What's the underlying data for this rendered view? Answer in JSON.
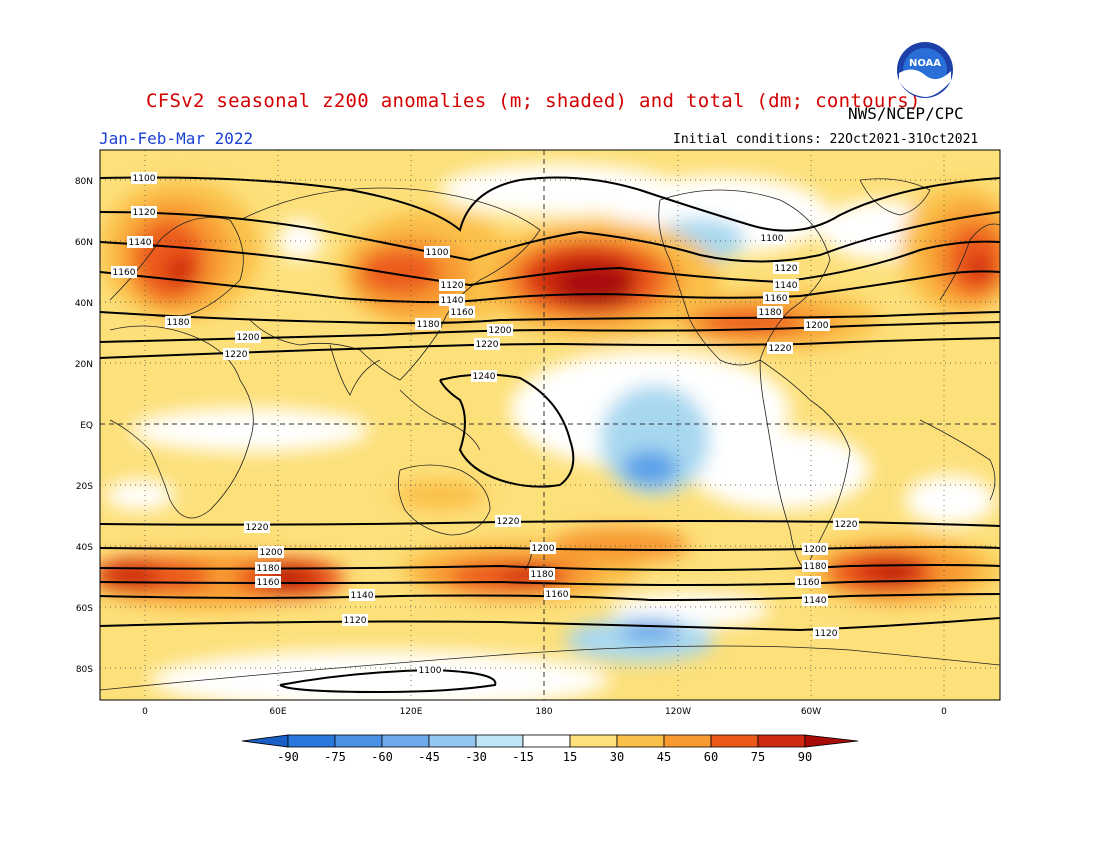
{
  "header": {
    "title": "CFSv2 seasonal z200 anomalies (m; shaded) and total (dm; contours)",
    "agency": "NWS/NCEP/CPC",
    "period": "Jan-Feb-Mar 2022",
    "initial_conditions": "Initial conditions: 22Oct2021-31Oct2021",
    "logo_text": "NOAA"
  },
  "map": {
    "lat_labels": [
      "80N",
      "60N",
      "40N",
      "20N",
      "EQ",
      "20S",
      "40S",
      "60S",
      "80S"
    ],
    "lon_labels": [
      "0",
      "60E",
      "120E",
      "180",
      "120W",
      "60W",
      "0"
    ],
    "contour_labels": [
      "1100",
      "1120",
      "1140",
      "1160",
      "1180",
      "1200",
      "1220",
      "1240"
    ],
    "colors": {
      "neg_strong": "#1f6fd6",
      "neg_mid": "#5aa0e8",
      "neg_weak": "#a8d8f0",
      "neutral": "#ffffff",
      "pos_15": "#fde07a",
      "pos_30": "#fbc04a",
      "pos_45": "#f89a30",
      "pos_60": "#ec5a1a",
      "pos_75": "#d02a10",
      "pos_90": "#a80c08"
    }
  },
  "colorbar": {
    "ticks": [
      "-90",
      "-75",
      "-60",
      "-45",
      "-30",
      "-15",
      "15",
      "30",
      "45",
      "60",
      "75",
      "90"
    ],
    "colors": [
      "#1a5fc8",
      "#2a78de",
      "#4a92e6",
      "#6ea9ec",
      "#94c6f2",
      "#bfe6f6",
      "#ffffff",
      "#fde07a",
      "#fbc04a",
      "#f89a30",
      "#ec5a1a",
      "#d02a10",
      "#a80c08"
    ]
  }
}
